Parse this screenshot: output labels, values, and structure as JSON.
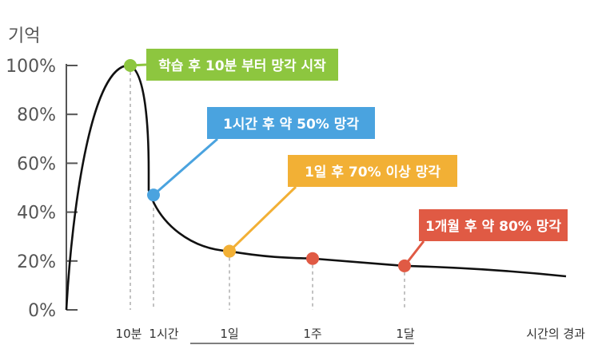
{
  "chart_data": {
    "type": "line",
    "ylabel": "기억",
    "xlabel": "시간의 경과",
    "ylim": [
      0,
      100
    ],
    "y_ticks": [
      {
        "value": 0,
        "label": "0%"
      },
      {
        "value": 20,
        "label": "20%"
      },
      {
        "value": 40,
        "label": "40%"
      },
      {
        "value": 60,
        "label": "60%"
      },
      {
        "value": 80,
        "label": "80%"
      },
      {
        "value": 100,
        "label": "100%"
      }
    ],
    "x_ticks": [
      "10분",
      "1시간",
      "1일",
      "1주",
      "1달"
    ],
    "curve_color": "#111111",
    "key_points": [
      {
        "x": "10분",
        "y": 100,
        "color": "#8dc63f",
        "annotation": "학습 후 10분 부터 망각 시작"
      },
      {
        "x": "1시간",
        "y": 47,
        "color": "#4aa3df",
        "annotation": "1시간 후 약 50% 망각"
      },
      {
        "x": "1일",
        "y": 24,
        "color": "#f2b035",
        "annotation": "1일 후 70% 이상 망각"
      },
      {
        "x": "1주",
        "y": 21,
        "color": "#e05a44",
        "annotation": ""
      },
      {
        "x": "1달",
        "y": 18,
        "color": "#e05a44",
        "annotation": "1개월 후 약 80% 망각"
      }
    ]
  }
}
